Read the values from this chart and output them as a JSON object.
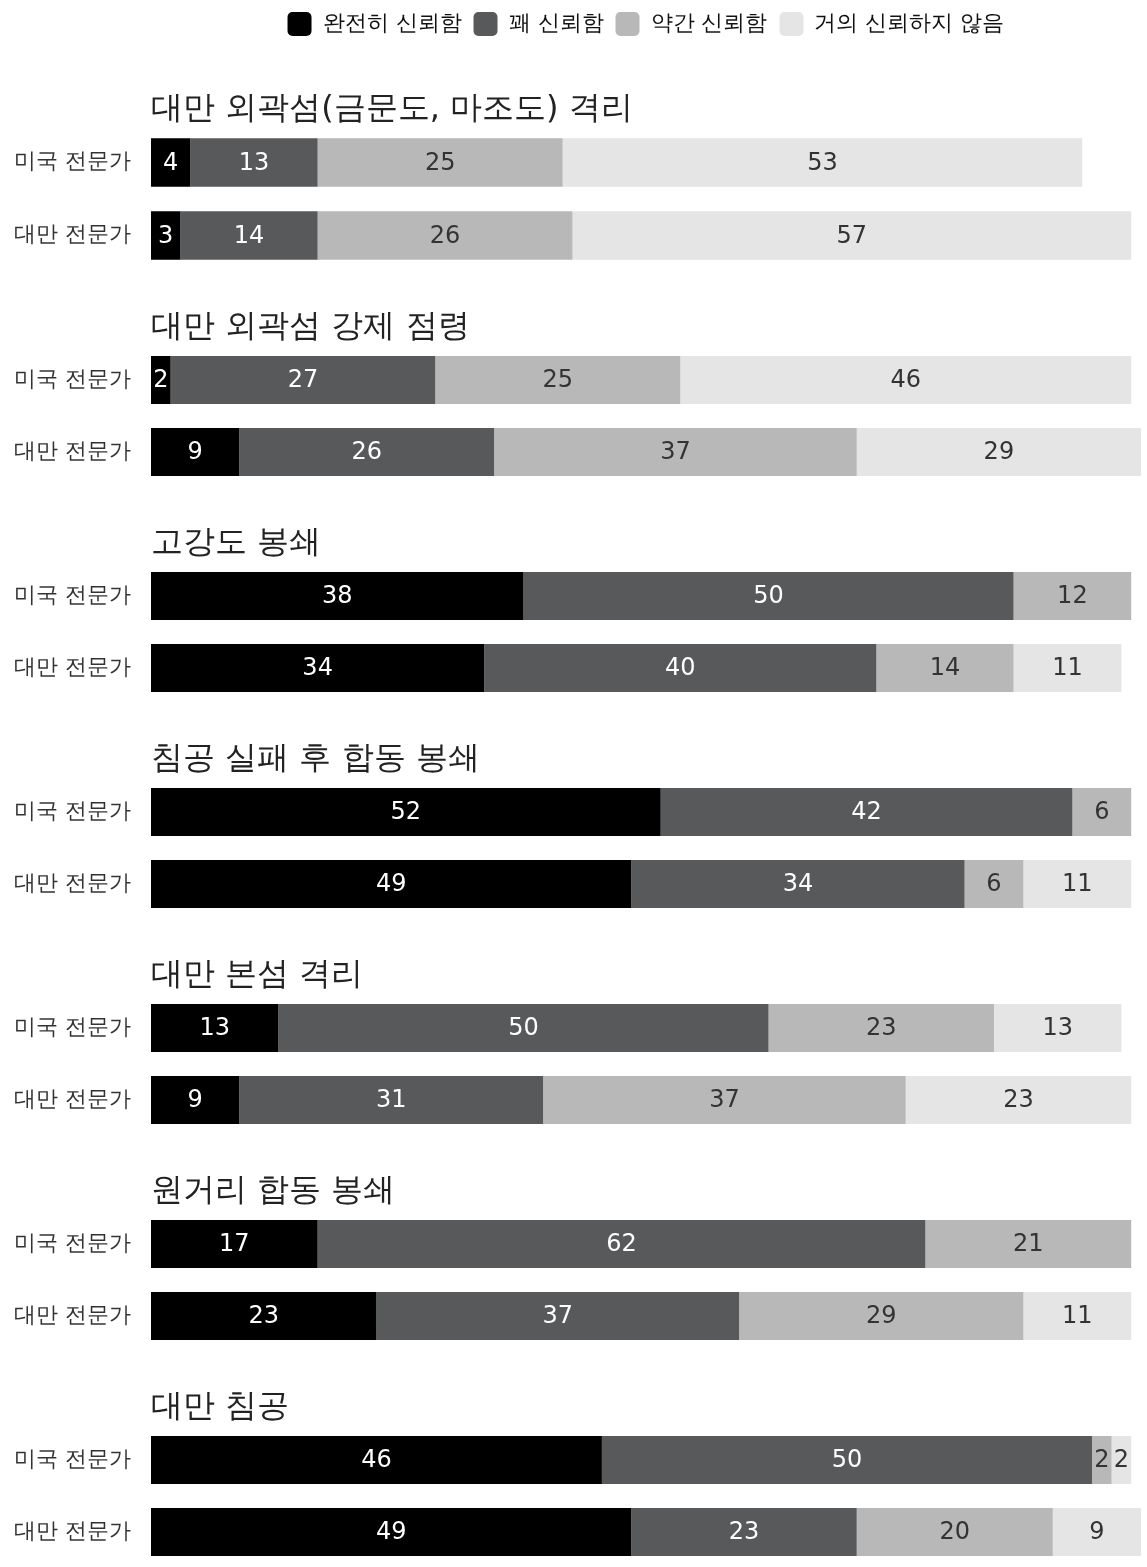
{
  "chart_data": [
    {
      "type": "bar",
      "orientation": "horizontal",
      "stacked": true,
      "title": "대만 외곽섬(금문도, 마조도) 격리",
      "categories": [
        "미국 전문가",
        "대만 전문가"
      ],
      "series": [
        {
          "name": "완전히 신뢰함",
          "color": "#000000",
          "values": [
            4,
            3
          ]
        },
        {
          "name": "꽤 신뢰함",
          "color": "#58595b",
          "values": [
            13,
            14
          ]
        },
        {
          "name": "약간 신뢰함",
          "color": "#b8b8b9",
          "values": [
            25,
            26
          ]
        },
        {
          "name": "거의 신뢰하지 않음",
          "color": "#e5e5e5",
          "values": [
            53,
            57
          ]
        }
      ],
      "data_labels": true,
      "legend": "top",
      "tick_labels": "y"
    },
    {
      "type": "bar",
      "orientation": "horizontal",
      "stacked": true,
      "title": "대만 외곽섬 강제 점령",
      "categories": [
        "미국 전문가",
        "대만 전문가"
      ],
      "series": [
        {
          "color": "#000000",
          "values": [
            2,
            9
          ]
        },
        {
          "color": "#58595b",
          "values": [
            27,
            26
          ]
        },
        {
          "color": "#b8b8b9",
          "values": [
            25,
            37
          ]
        },
        {
          "color": "#e5e5e5",
          "values": [
            46,
            29
          ]
        }
      ],
      "data_labels": true,
      "tick_labels": "y"
    },
    {
      "type": "bar",
      "orientation": "horizontal",
      "stacked": true,
      "title": "고강도 봉쇄",
      "categories": [
        "미국 전문가",
        "대만 전문가"
      ],
      "series": [
        {
          "color": "#000000",
          "values": [
            38,
            34
          ]
        },
        {
          "color": "#58595b",
          "values": [
            50,
            40
          ]
        },
        {
          "color": "#b8b8b9",
          "values": [
            12,
            14
          ]
        },
        {
          "color": "#e5e5e5",
          "values": [
            null,
            11
          ]
        }
      ],
      "data_labels": true,
      "tick_labels": "y"
    },
    {
      "type": "bar",
      "orientation": "horizontal",
      "stacked": true,
      "title": "침공 실패 후 합동 봉쇄",
      "categories": [
        "미국 전문가",
        "대만 전문가"
      ],
      "series": [
        {
          "color": "#000000",
          "values": [
            52,
            49
          ]
        },
        {
          "color": "#58595b",
          "values": [
            42,
            34
          ]
        },
        {
          "color": "#b8b8b9",
          "values": [
            6,
            6
          ]
        },
        {
          "color": "#e5e5e5",
          "values": [
            null,
            11
          ]
        }
      ],
      "data_labels": true,
      "tick_labels": "y"
    },
    {
      "type": "bar",
      "orientation": "horizontal",
      "stacked": true,
      "title": "대만 본섬 격리",
      "categories": [
        "미국 전문가",
        "대만 전문가"
      ],
      "series": [
        {
          "color": "#000000",
          "values": [
            13,
            9
          ]
        },
        {
          "color": "#58595b",
          "values": [
            50,
            31
          ]
        },
        {
          "color": "#b8b8b9",
          "values": [
            23,
            37
          ]
        },
        {
          "color": "#e5e5e5",
          "values": [
            13,
            23
          ]
        }
      ],
      "data_labels": true,
      "tick_labels": "y"
    },
    {
      "type": "bar",
      "orientation": "horizontal",
      "stacked": true,
      "title": "원거리 합동 봉쇄",
      "categories": [
        "미국 전문가",
        "대만 전문가"
      ],
      "series": [
        {
          "color": "#000000",
          "values": [
            17,
            23
          ]
        },
        {
          "color": "#58595b",
          "values": [
            62,
            37
          ]
        },
        {
          "color": "#b8b8b9",
          "values": [
            21,
            29
          ]
        },
        {
          "color": "#e5e5e5",
          "values": [
            null,
            11
          ]
        }
      ],
      "data_labels": true,
      "tick_labels": "y"
    },
    {
      "type": "bar",
      "orientation": "horizontal",
      "stacked": true,
      "title": "대만 침공",
      "categories": [
        "미국 전문가",
        "대만 전문가"
      ],
      "series": [
        {
          "color": "#000000",
          "values": [
            46,
            49
          ]
        },
        {
          "color": "#58595b",
          "values": [
            50,
            23
          ]
        },
        {
          "color": "#b8b8b9",
          "values": [
            2,
            20
          ]
        },
        {
          "color": "#e5e5e5",
          "values": [
            2,
            9
          ]
        }
      ],
      "data_labels": true,
      "tick_labels": "y"
    }
  ]
}
